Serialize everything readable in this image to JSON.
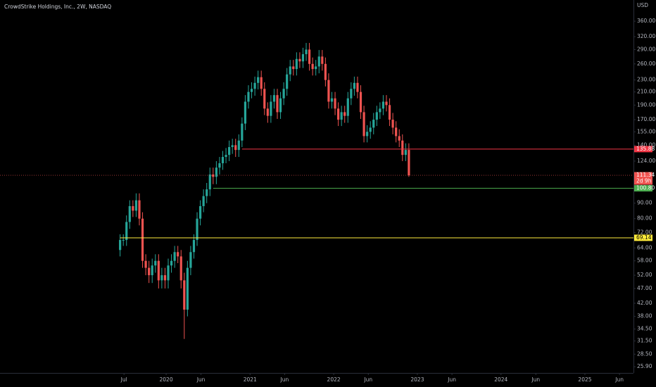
{
  "chart_data": {
    "type": "candlestick",
    "title": "CrowdStrike Holdings, Inc., 2W, NASDAQ",
    "currency": "USD",
    "log_scale": true,
    "up_color": "#26a69a",
    "down_color": "#ef5350",
    "x": [
      "2019-06-14",
      "2019-06-28",
      "2019-07-12",
      "2019-07-26",
      "2019-08-09",
      "2019-08-23",
      "2019-09-06",
      "2019-09-20",
      "2019-10-04",
      "2019-10-18",
      "2019-11-01",
      "2019-11-15",
      "2019-11-29",
      "2019-12-13",
      "2019-12-27",
      "2020-01-10",
      "2020-01-24",
      "2020-02-07",
      "2020-02-21",
      "2020-03-06",
      "2020-03-20",
      "2020-04-03",
      "2020-04-17",
      "2020-05-01",
      "2020-05-15",
      "2020-05-29",
      "2020-06-12",
      "2020-06-26",
      "2020-07-10",
      "2020-07-24",
      "2020-08-07",
      "2020-08-21",
      "2020-09-04",
      "2020-09-18",
      "2020-10-02",
      "2020-10-16",
      "2020-10-30",
      "2020-11-13",
      "2020-11-27",
      "2020-12-11",
      "2020-12-25",
      "2021-01-08",
      "2021-01-22",
      "2021-02-05",
      "2021-02-19",
      "2021-03-05",
      "2021-03-19",
      "2021-04-02",
      "2021-04-16",
      "2021-04-30",
      "2021-05-14",
      "2021-05-28",
      "2021-06-11",
      "2021-06-25",
      "2021-07-09",
      "2021-07-23",
      "2021-08-06",
      "2021-08-20",
      "2021-09-03",
      "2021-09-17",
      "2021-10-01",
      "2021-10-15",
      "2021-10-29",
      "2021-11-12",
      "2021-11-26",
      "2021-12-10",
      "2021-12-24",
      "2022-01-07",
      "2022-01-21",
      "2022-02-04",
      "2022-02-18",
      "2022-03-04",
      "2022-03-18",
      "2022-04-01",
      "2022-04-15",
      "2022-04-29",
      "2022-05-13",
      "2022-05-27",
      "2022-06-10",
      "2022-06-24",
      "2022-07-08",
      "2022-07-22",
      "2022-08-05",
      "2022-08-19",
      "2022-09-02",
      "2022-09-16",
      "2022-09-30",
      "2022-10-14",
      "2022-10-28",
      "2022-11-11",
      "2022-11-25"
    ],
    "open": [
      63,
      68,
      68,
      78,
      88,
      85,
      92,
      80,
      58,
      55,
      52,
      56,
      58,
      50,
      52,
      50,
      56,
      58,
      62,
      60,
      50,
      40,
      55,
      62,
      68,
      80,
      88,
      95,
      100,
      112,
      110,
      118,
      122,
      128,
      130,
      138,
      140,
      135,
      145,
      165,
      195,
      210,
      215,
      225,
      235,
      215,
      185,
      175,
      195,
      205,
      180,
      200,
      215,
      240,
      255,
      250,
      270,
      265,
      280,
      290,
      260,
      250,
      255,
      275,
      260,
      230,
      195,
      200,
      185,
      170,
      180,
      175,
      200,
      215,
      225,
      210,
      180,
      150,
      155,
      160,
      170,
      180,
      185,
      195,
      190,
      170,
      160,
      150,
      145,
      130,
      135
    ],
    "high": [
      71,
      71,
      82,
      92,
      92,
      97,
      97,
      84,
      61,
      58,
      59,
      61,
      61,
      55,
      55,
      59,
      61,
      65,
      65,
      63,
      53,
      58,
      65,
      71,
      84,
      92,
      100,
      105,
      118,
      118,
      124,
      128,
      134,
      137,
      145,
      147,
      147,
      152,
      173,
      205,
      221,
      226,
      236,
      247,
      247,
      226,
      194,
      205,
      215,
      215,
      210,
      226,
      252,
      268,
      268,
      284,
      284,
      294,
      305,
      305,
      273,
      268,
      289,
      289,
      273,
      242,
      210,
      210,
      194,
      189,
      189,
      210,
      226,
      236,
      236,
      221,
      189,
      163,
      168,
      179,
      189,
      194,
      205,
      205,
      200,
      179,
      168,
      158,
      152,
      142,
      142
    ],
    "low": [
      60,
      65,
      65,
      74,
      81,
      81,
      76,
      55,
      52,
      49,
      49,
      53,
      47,
      47,
      47,
      47,
      53,
      55,
      57,
      47,
      32,
      38,
      52,
      59,
      65,
      76,
      84,
      90,
      95,
      104,
      104,
      112,
      116,
      122,
      124,
      131,
      128,
      128,
      138,
      157,
      185,
      200,
      204,
      214,
      204,
      176,
      166,
      166,
      185,
      171,
      171,
      190,
      204,
      228,
      238,
      238,
      252,
      252,
      266,
      247,
      238,
      238,
      242,
      247,
      219,
      185,
      185,
      176,
      162,
      162,
      166,
      166,
      190,
      204,
      200,
      171,
      143,
      143,
      147,
      152,
      162,
      171,
      176,
      181,
      162,
      152,
      143,
      138,
      124,
      124,
      110
    ],
    "close": [
      68,
      68,
      78,
      88,
      85,
      92,
      80,
      58,
      55,
      52,
      56,
      58,
      50,
      52,
      50,
      56,
      58,
      62,
      60,
      50,
      40,
      55,
      62,
      68,
      80,
      88,
      95,
      100,
      112,
      110,
      118,
      122,
      128,
      130,
      138,
      140,
      135,
      145,
      165,
      195,
      210,
      215,
      225,
      235,
      215,
      185,
      175,
      195,
      205,
      180,
      200,
      215,
      240,
      255,
      250,
      270,
      265,
      280,
      290,
      260,
      250,
      255,
      275,
      260,
      230,
      195,
      200,
      185,
      170,
      180,
      175,
      200,
      215,
      225,
      210,
      180,
      150,
      155,
      160,
      170,
      180,
      185,
      195,
      190,
      170,
      160,
      150,
      145,
      130,
      135,
      111.34
    ],
    "ylim": [
      24.7,
      423
    ],
    "yticks": [
      {
        "value": 360,
        "label": "360.00"
      },
      {
        "value": 320,
        "label": "320.00"
      },
      {
        "value": 290,
        "label": "290.00"
      },
      {
        "value": 260,
        "label": "260.00"
      },
      {
        "value": 230,
        "label": "230.00"
      },
      {
        "value": 210,
        "label": "210.00"
      },
      {
        "value": 190,
        "label": "190.00"
      },
      {
        "value": 170,
        "label": "170.00"
      },
      {
        "value": 155,
        "label": "155.00"
      },
      {
        "value": 140,
        "label": "140.00"
      },
      {
        "value": 124,
        "label": "124.00"
      },
      {
        "value": 90,
        "label": "90.00"
      },
      {
        "value": 80,
        "label": "80.00"
      },
      {
        "value": 72,
        "label": "72.00"
      },
      {
        "value": 64,
        "label": "64.00"
      },
      {
        "value": 58,
        "label": "58.00"
      },
      {
        "value": 52,
        "label": "52.00"
      },
      {
        "value": 47,
        "label": "47.00"
      },
      {
        "value": 42,
        "label": "42.00"
      },
      {
        "value": 38,
        "label": "38.00"
      },
      {
        "value": 34.5,
        "label": "34.50"
      },
      {
        "value": 31.5,
        "label": "31.50"
      },
      {
        "value": 28.5,
        "label": "28.50"
      },
      {
        "value": 25.9,
        "label": "25.90"
      }
    ],
    "xlim": [
      "2018-01-06",
      "2025-08-01"
    ],
    "xticks": [
      {
        "value": "2019-07-01",
        "label": "Jul"
      },
      {
        "value": "2020-01-01",
        "label": "2020"
      },
      {
        "value": "2020-06-01",
        "label": "Jun"
      },
      {
        "value": "2021-01-01",
        "label": "2021"
      },
      {
        "value": "2021-06-01",
        "label": "Jun"
      },
      {
        "value": "2022-01-01",
        "label": "2022"
      },
      {
        "value": "2022-06-01",
        "label": "Jun"
      },
      {
        "value": "2023-01-01",
        "label": "2023"
      },
      {
        "value": "2023-06-01",
        "label": "Jun"
      },
      {
        "value": "2024-01-01",
        "label": "2024"
      },
      {
        "value": "2024-06-01",
        "label": "Jun"
      },
      {
        "value": "2025-01-01",
        "label": "2025"
      },
      {
        "value": "2025-06-01",
        "label": "Jun"
      }
    ],
    "levels": [
      {
        "value": 135.88,
        "from": "2020-11-27",
        "color": "#f23645",
        "text_color": "#ffffff"
      },
      {
        "value": 111.34,
        "countdown": "2d 9h",
        "color": "#ef5350",
        "text_color": "#ffffff",
        "dashed": true
      },
      {
        "value": 100.8,
        "label": "100.80",
        "from": "2020-07-24",
        "color": "#4caf50",
        "text_color": "#ffffff"
      },
      {
        "value": 69.14,
        "from": "2019-06-14",
        "color": "#ffeb3b",
        "text_color": "#000000"
      }
    ]
  }
}
